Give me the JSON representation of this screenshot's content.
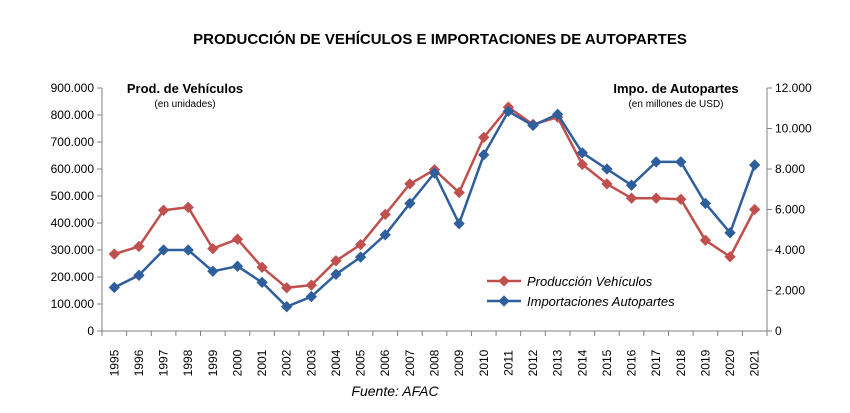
{
  "chart_data": {
    "type": "line",
    "title": "PRODUCCIÓN DE VEHÍCULOS E IMPORTACIONES DE AUTOPARTES",
    "x": [
      "1995",
      "1996",
      "1997",
      "1998",
      "1999",
      "2000",
      "2001",
      "2002",
      "2003",
      "2004",
      "2005",
      "2006",
      "2007",
      "2008",
      "2009",
      "2010",
      "2011",
      "2012",
      "2013",
      "2014",
      "2015",
      "2016",
      "2017",
      "2018",
      "2019",
      "2020",
      "2021"
    ],
    "left_axis": {
      "label": "Prod. de Vehículos",
      "sublabel": "(en unidades)",
      "range": [
        0,
        900000
      ],
      "ticks": [
        "0",
        "100.000",
        "200.000",
        "300.000",
        "400.000",
        "500.000",
        "600.000",
        "700.000",
        "800.000",
        "900.000"
      ]
    },
    "right_axis": {
      "label": "Impo. de Autopartes",
      "sublabel": "(en millones de USD)",
      "range": [
        0,
        12000
      ],
      "ticks": [
        "0",
        "2.000",
        "4.000",
        "6.000",
        "8.000",
        "10.000",
        "12.000"
      ]
    },
    "series": [
      {
        "name": "Producción Vehículos",
        "axis": "left",
        "color": "#c0504d",
        "values": [
          285000,
          313000,
          447000,
          458000,
          305000,
          340000,
          236000,
          160000,
          170000,
          260000,
          320000,
          432000,
          545000,
          597000,
          513000,
          717000,
          829000,
          765000,
          792000,
          617000,
          545000,
          492000,
          492000,
          488000,
          336000,
          275000,
          450000
        ]
      },
      {
        "name": "Importaciones Autopartes",
        "axis": "right",
        "color": "#2e5e9c",
        "values": [
          2150,
          2750,
          4000,
          4000,
          2950,
          3200,
          2400,
          1200,
          1700,
          2800,
          3650,
          4750,
          6300,
          7800,
          5300,
          8700,
          10850,
          10150,
          10700,
          8800,
          8000,
          7200,
          8350,
          8350,
          6300,
          4850,
          8200
        ]
      }
    ],
    "legend_position": "bottom-right",
    "grid": false
  },
  "source_note": "Fuente: AFAC"
}
